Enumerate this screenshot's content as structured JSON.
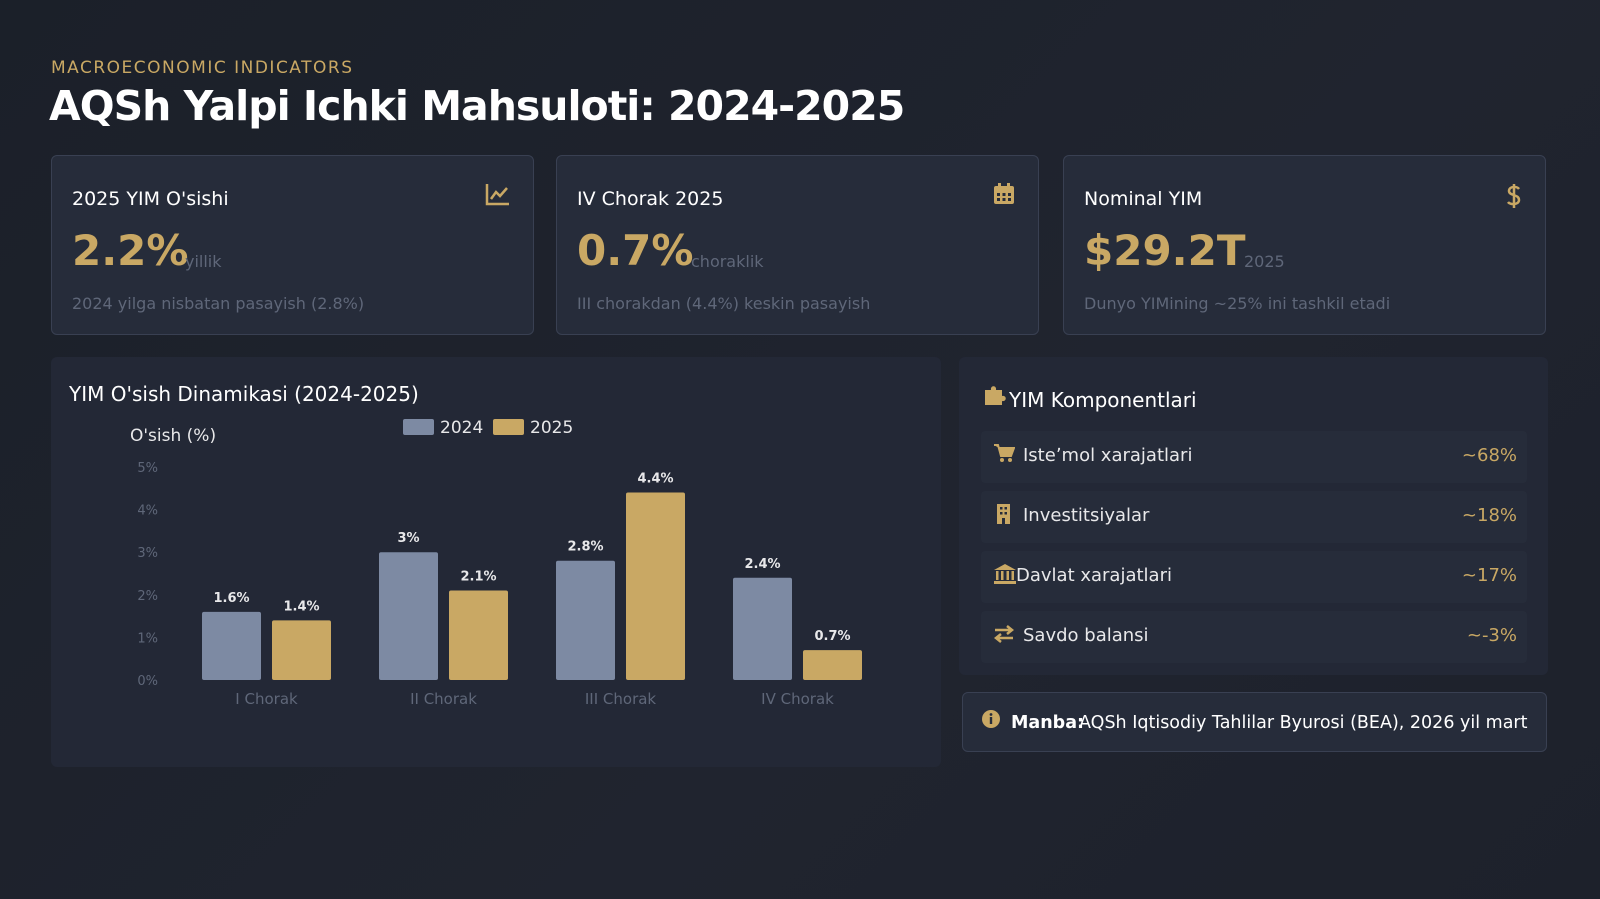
{
  "header": {
    "eyebrow": "MACROECONOMIC INDICATORS",
    "title": "AQSh Yalpi Ichki Mahsuloti: 2024-2025"
  },
  "cards": [
    {
      "title": "2025 YIM O'sishi",
      "value": "2.2%",
      "unit": "yillik",
      "note": "2024 yilga nisbatan pasayish (2.8%)"
    },
    {
      "title": "IV Chorak 2025",
      "value": "0.7%",
      "unit": "choraklik",
      "note": "III chorakdan (4.4%) keskin pasayish"
    },
    {
      "title": "Nominal YIM",
      "value": "$29.2T",
      "unit": "2025",
      "note": "Dunyo YIMining ~25% ini tashkil etadi"
    }
  ],
  "chart_data": {
    "type": "bar",
    "title": "YIM O'sish Dinamikasi (2024-2025)",
    "y_label": "O'sish (%)",
    "categories": [
      "I Chorak",
      "II Chorak",
      "III Chorak",
      "IV Chorak"
    ],
    "series": [
      {
        "name": "2024",
        "color": "#7d8aa3",
        "values": [
          1.6,
          3,
          2.8,
          2.4
        ],
        "value_labels": [
          "1.6%",
          "3%",
          "2.8%",
          "2.4%"
        ]
      },
      {
        "name": "2025",
        "color": "#c9a864",
        "values": [
          1.4,
          2.1,
          4.4,
          0.7
        ],
        "value_labels": [
          "1.4%",
          "2.1%",
          "4.4%",
          "0.7%"
        ]
      }
    ],
    "ylim": [
      0,
      5
    ],
    "yticks": [
      {
        "value": 0,
        "label": "0%"
      },
      {
        "value": 1,
        "label": "1%"
      },
      {
        "value": 2,
        "label": "2%"
      },
      {
        "value": 3,
        "label": "3%"
      },
      {
        "value": 4,
        "label": "4%"
      },
      {
        "value": 5,
        "label": "5%"
      }
    ],
    "legend": "top"
  },
  "components": {
    "title": "YIM Komponentlari",
    "items": [
      {
        "label": "Isteʼmol xarajatlari",
        "value": "~68%"
      },
      {
        "label": "Investitsiyalar",
        "value": "~18%"
      },
      {
        "label": "Davlat xarajatlari",
        "value": "~17%"
      },
      {
        "label": "Savdo balansi",
        "value": "~-3%"
      }
    ]
  },
  "source": {
    "label": "Manba:",
    "text": "AQSh Iqtisodiy Tahlilar Byurosi (BEA), 2026 yil mart"
  }
}
